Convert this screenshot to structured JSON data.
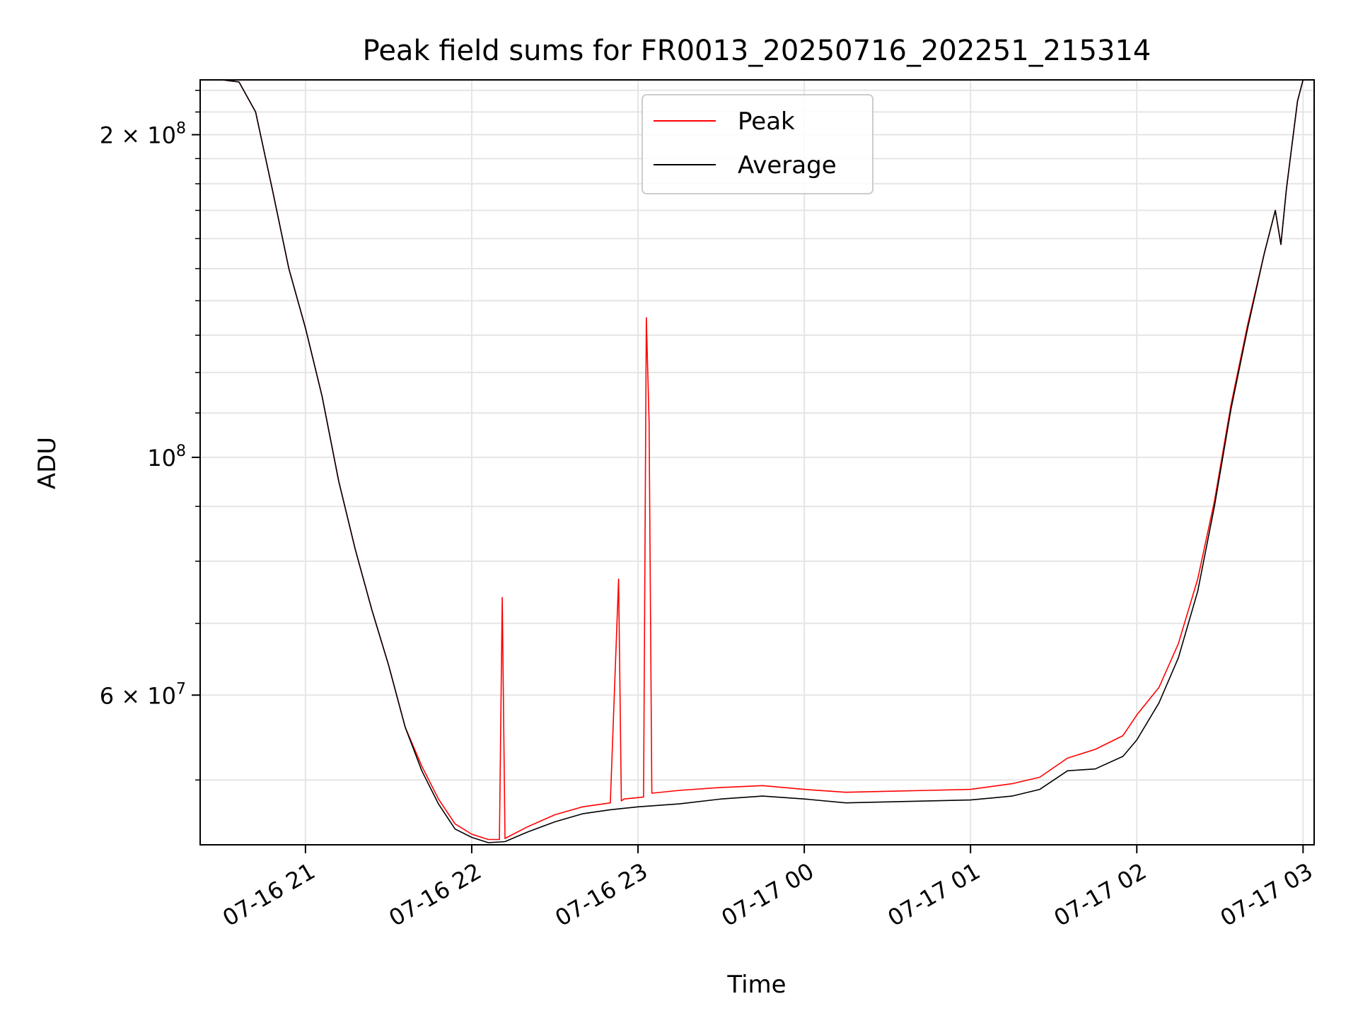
{
  "chart_data": {
    "type": "line",
    "title": "Peak field sums for FR0013_20250716_202251_215314",
    "xlabel": "Time",
    "ylabel": "ADU",
    "yscale": "log",
    "grid": true,
    "legend_position": "upper center",
    "xlim": [
      "2025-07-16 20:22",
      "2025-07-17 03:04"
    ],
    "ylim": [
      43500000,
      225000000
    ],
    "x_ticks": [
      "07-16 21",
      "07-16 22",
      "07-16 23",
      "07-17 00",
      "07-17 01",
      "07-17 02",
      "07-17 03"
    ],
    "y_ticks": [
      {
        "value": 200000000,
        "label": "2 × 10^8"
      },
      {
        "value": 100000000,
        "label": "10^8"
      },
      {
        "value": 60000000,
        "label": "6 × 10^7"
      }
    ],
    "series": [
      {
        "name": "Average",
        "color": "#000000",
        "x": [
          "2025-07-16 20:22",
          "2025-07-16 20:30",
          "2025-07-16 20:36",
          "2025-07-16 20:42",
          "2025-07-16 20:48",
          "2025-07-16 20:54",
          "2025-07-16 21:00",
          "2025-07-16 21:06",
          "2025-07-16 21:12",
          "2025-07-16 21:18",
          "2025-07-16 21:24",
          "2025-07-16 21:30",
          "2025-07-16 21:36",
          "2025-07-16 21:42",
          "2025-07-16 21:48",
          "2025-07-16 21:54",
          "2025-07-16 22:00",
          "2025-07-16 22:06",
          "2025-07-16 22:12",
          "2025-07-16 22:20",
          "2025-07-16 22:30",
          "2025-07-16 22:40",
          "2025-07-16 22:50",
          "2025-07-16 23:00",
          "2025-07-16 23:15",
          "2025-07-16 23:30",
          "2025-07-16 23:45",
          "2025-07-17 00:00",
          "2025-07-17 00:15",
          "2025-07-17 00:30",
          "2025-07-17 00:45",
          "2025-07-17 01:00",
          "2025-07-17 01:15",
          "2025-07-17 01:25",
          "2025-07-17 01:35",
          "2025-07-17 01:45",
          "2025-07-17 01:55",
          "2025-07-17 02:00",
          "2025-07-17 02:08",
          "2025-07-17 02:15",
          "2025-07-17 02:22",
          "2025-07-17 02:28",
          "2025-07-17 02:34",
          "2025-07-17 02:40",
          "2025-07-17 02:46",
          "2025-07-17 02:50",
          "2025-07-17 02:52",
          "2025-07-17 02:54",
          "2025-07-17 02:58",
          "2025-07-17 03:00",
          "2025-07-17 03:04"
        ],
        "y": [
          225000000,
          225000000,
          224000000,
          210000000,
          178000000,
          150000000,
          132000000,
          114000000,
          95000000,
          82000000,
          72000000,
          64000000,
          56000000,
          51000000,
          47500000,
          45000000,
          44200000,
          43700000,
          43800000,
          44700000,
          45700000,
          46500000,
          46900000,
          47200000,
          47500000,
          48000000,
          48300000,
          48000000,
          47600000,
          47700000,
          47800000,
          47900000,
          48300000,
          49000000,
          51000000,
          51200000,
          52600000,
          54500000,
          59000000,
          65000000,
          75000000,
          90000000,
          111000000,
          132000000,
          155000000,
          170000000,
          158000000,
          178000000,
          215000000,
          225000000,
          225000000
        ]
      },
      {
        "name": "Peak",
        "color": "#ff0000",
        "x": [
          "2025-07-16 20:22",
          "2025-07-16 20:30",
          "2025-07-16 20:36",
          "2025-07-16 20:42",
          "2025-07-16 20:48",
          "2025-07-16 20:54",
          "2025-07-16 21:00",
          "2025-07-16 21:06",
          "2025-07-16 21:12",
          "2025-07-16 21:18",
          "2025-07-16 21:24",
          "2025-07-16 21:30",
          "2025-07-16 21:36",
          "2025-07-16 21:42",
          "2025-07-16 21:48",
          "2025-07-16 21:54",
          "2025-07-16 22:00",
          "2025-07-16 22:06",
          "2025-07-16 22:10",
          "2025-07-16 22:11",
          "2025-07-16 22:12",
          "2025-07-16 22:20",
          "2025-07-16 22:30",
          "2025-07-16 22:40",
          "2025-07-16 22:50",
          "2025-07-16 22:53",
          "2025-07-16 22:54",
          "2025-07-16 22:55",
          "2025-07-16 23:02",
          "2025-07-16 23:03",
          "2025-07-16 23:04",
          "2025-07-16 23:05",
          "2025-07-16 23:15",
          "2025-07-16 23:30",
          "2025-07-16 23:45",
          "2025-07-17 00:00",
          "2025-07-17 00:15",
          "2025-07-17 00:30",
          "2025-07-17 00:45",
          "2025-07-17 01:00",
          "2025-07-17 01:15",
          "2025-07-17 01:25",
          "2025-07-17 01:35",
          "2025-07-17 01:45",
          "2025-07-17 01:55",
          "2025-07-17 02:00",
          "2025-07-17 02:08",
          "2025-07-17 02:15",
          "2025-07-17 02:22",
          "2025-07-17 02:28",
          "2025-07-17 02:34",
          "2025-07-17 02:40",
          "2025-07-17 02:46",
          "2025-07-17 02:50",
          "2025-07-17 02:52",
          "2025-07-17 02:54",
          "2025-07-17 02:58",
          "2025-07-17 03:00",
          "2025-07-17 03:04"
        ],
        "y": [
          225000000,
          225000000,
          224000000,
          210000000,
          178000000,
          150000000,
          132000000,
          114000000,
          95000000,
          82000000,
          72000000,
          64000000,
          56000000,
          51500000,
          48000000,
          45500000,
          44500000,
          44000000,
          44000000,
          74000000,
          44100000,
          45200000,
          46400000,
          47200000,
          47600000,
          77000000,
          47800000,
          48000000,
          48200000,
          135000000,
          108000000,
          48600000,
          48900000,
          49200000,
          49400000,
          49000000,
          48700000,
          48800000,
          48900000,
          49000000,
          49600000,
          50300000,
          52400000,
          53400000,
          55000000,
          57500000,
          61000000,
          67000000,
          77000000,
          91000000,
          112000000,
          133000000,
          155000000,
          170000000,
          158000000,
          178000000,
          215000000,
          225000000,
          225000000
        ]
      }
    ]
  }
}
